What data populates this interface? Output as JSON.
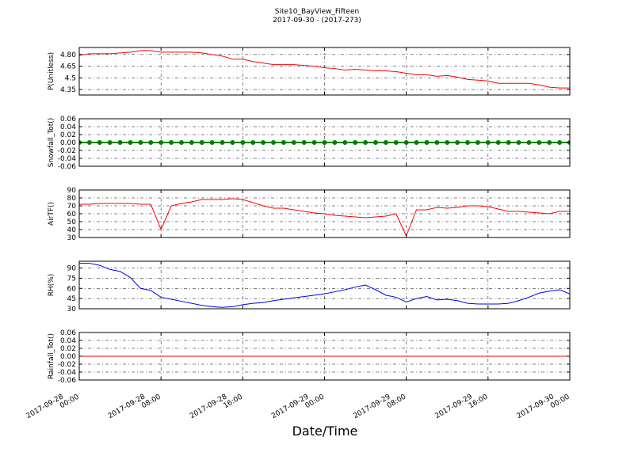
{
  "title": "Site10_BayView_Fifteen",
  "subtitle": "2017-09-30 - (2017-273)",
  "x_axis": {
    "label": "Date/Time",
    "xlim": [
      "2017-09-28 00:00",
      "2017-09-30 00:00"
    ],
    "xticks": [
      "2017-09-28 00:00",
      "2017-09-28 08:00",
      "2017-09-28 16:00",
      "2017-09-29 00:00",
      "2017-09-29 08:00",
      "2017-09-29 16:00",
      "2017-09-30 00:00"
    ],
    "x": [
      "2017-09-28 00:00",
      "2017-09-28 01:00",
      "2017-09-28 02:00",
      "2017-09-28 03:00",
      "2017-09-28 04:00",
      "2017-09-28 05:00",
      "2017-09-28 06:00",
      "2017-09-28 07:00",
      "2017-09-28 08:00",
      "2017-09-28 09:00",
      "2017-09-28 10:00",
      "2017-09-28 11:00",
      "2017-09-28 12:00",
      "2017-09-28 13:00",
      "2017-09-28 14:00",
      "2017-09-28 15:00",
      "2017-09-28 16:00",
      "2017-09-28 17:00",
      "2017-09-28 18:00",
      "2017-09-28 19:00",
      "2017-09-28 20:00",
      "2017-09-28 21:00",
      "2017-09-28 22:00",
      "2017-09-28 23:00",
      "2017-09-29 00:00",
      "2017-09-29 01:00",
      "2017-09-29 02:00",
      "2017-09-29 03:00",
      "2017-09-29 04:00",
      "2017-09-29 05:00",
      "2017-09-29 06:00",
      "2017-09-29 07:00",
      "2017-09-29 08:00",
      "2017-09-29 09:00",
      "2017-09-29 10:00",
      "2017-09-29 11:00",
      "2017-09-29 12:00",
      "2017-09-29 13:00",
      "2017-09-29 14:00",
      "2017-09-29 15:00",
      "2017-09-29 16:00",
      "2017-09-29 17:00",
      "2017-09-29 18:00",
      "2017-09-29 19:00",
      "2017-09-29 20:00",
      "2017-09-29 21:00",
      "2017-09-29 22:00",
      "2017-09-29 23:00",
      "2017-09-30 00:00"
    ]
  },
  "chart_data": [
    {
      "type": "line",
      "ylabel": "P(Unitless)",
      "color": "#ff0000",
      "grid": true,
      "ylim": [
        4.28,
        4.89
      ],
      "yticks": [
        4.35,
        4.5,
        {
          "value": 4.65,
          "label": "4.65"
        },
        {
          "value": 4.8,
          "label": "4.80"
        }
      ],
      "values": [
        4.79,
        4.81,
        4.81,
        4.81,
        4.82,
        4.83,
        4.85,
        4.85,
        4.83,
        4.83,
        4.83,
        4.83,
        4.82,
        4.8,
        4.78,
        4.74,
        4.74,
        4.71,
        4.69,
        4.67,
        4.67,
        4.67,
        4.66,
        4.65,
        4.63,
        4.62,
        4.6,
        4.61,
        4.6,
        4.59,
        4.59,
        4.58,
        4.56,
        4.54,
        4.54,
        4.52,
        4.53,
        4.51,
        4.48,
        4.47,
        4.46,
        4.43,
        4.43,
        4.43,
        4.43,
        4.41,
        4.38,
        4.37,
        4.37
      ]
    },
    {
      "type": "line",
      "ylabel": "Snowfall_Tot()",
      "color": "#008000",
      "marker": true,
      "grid": true,
      "ylim": [
        -0.06,
        0.06
      ],
      "yticks": [
        -0.06,
        -0.04,
        -0.02,
        {
          "value": 0,
          "label": "0.00"
        },
        0.02,
        0.04,
        0.06
      ],
      "values": [
        0,
        0,
        0,
        0,
        0,
        0,
        0,
        0,
        0,
        0,
        0,
        0,
        0,
        0,
        0,
        0,
        0,
        0,
        0,
        0,
        0,
        0,
        0,
        0,
        0,
        0,
        0,
        0,
        0,
        0,
        0,
        0,
        0,
        0,
        0,
        0,
        0,
        0,
        0,
        0,
        0,
        0,
        0,
        0,
        0,
        0,
        0,
        0,
        0
      ]
    },
    {
      "type": "line",
      "ylabel": "AirTF()",
      "color": "#ff0000",
      "grid": true,
      "ylim": [
        30,
        90
      ],
      "yticks": [
        30,
        40,
        50,
        60,
        70,
        80,
        90
      ],
      "values": [
        72,
        72,
        73,
        73,
        73,
        73,
        72,
        72,
        40,
        70,
        73,
        75,
        78,
        78,
        78,
        79,
        78,
        74,
        70,
        67,
        67,
        65,
        63,
        61,
        60,
        58,
        57,
        56,
        55,
        56,
        57,
        60,
        32,
        65,
        65,
        68,
        67,
        68,
        70,
        70,
        69,
        66,
        63,
        63,
        62,
        61,
        60,
        63,
        63
      ]
    },
    {
      "type": "line",
      "ylabel": "RH(%)",
      "color": "#0000ff",
      "grid": true,
      "ylim": [
        30,
        100
      ],
      "yticks": [
        30,
        45,
        60,
        75,
        90
      ],
      "values": [
        97,
        97,
        94,
        88,
        85,
        76,
        60,
        57,
        47,
        44,
        41,
        38,
        35,
        33,
        32,
        33,
        36,
        38,
        39,
        42,
        44,
        46,
        48,
        50,
        52,
        55,
        58,
        62,
        65,
        58,
        50,
        47,
        40,
        45,
        48,
        43,
        44,
        42,
        38,
        37,
        37,
        37,
        38,
        42,
        47,
        53,
        56,
        58,
        52
      ]
    },
    {
      "type": "line",
      "ylabel": "Rainfall_Tot()",
      "color": "#ff0000",
      "grid": true,
      "ylim": [
        -0.06,
        0.06
      ],
      "yticks": [
        -0.06,
        -0.04,
        -0.02,
        {
          "value": 0,
          "label": "0.00"
        },
        0.02,
        0.04,
        0.06
      ],
      "values": [
        0,
        0,
        0,
        0,
        0,
        0,
        0,
        0,
        0,
        0,
        0,
        0,
        0,
        0,
        0,
        0,
        0,
        0,
        0,
        0,
        0,
        0,
        0,
        0,
        0,
        0,
        0,
        0,
        0,
        0,
        0,
        0,
        0,
        0,
        0,
        0,
        0,
        0,
        0,
        0,
        0,
        0,
        0,
        0,
        0,
        0,
        0,
        0,
        0
      ]
    }
  ]
}
